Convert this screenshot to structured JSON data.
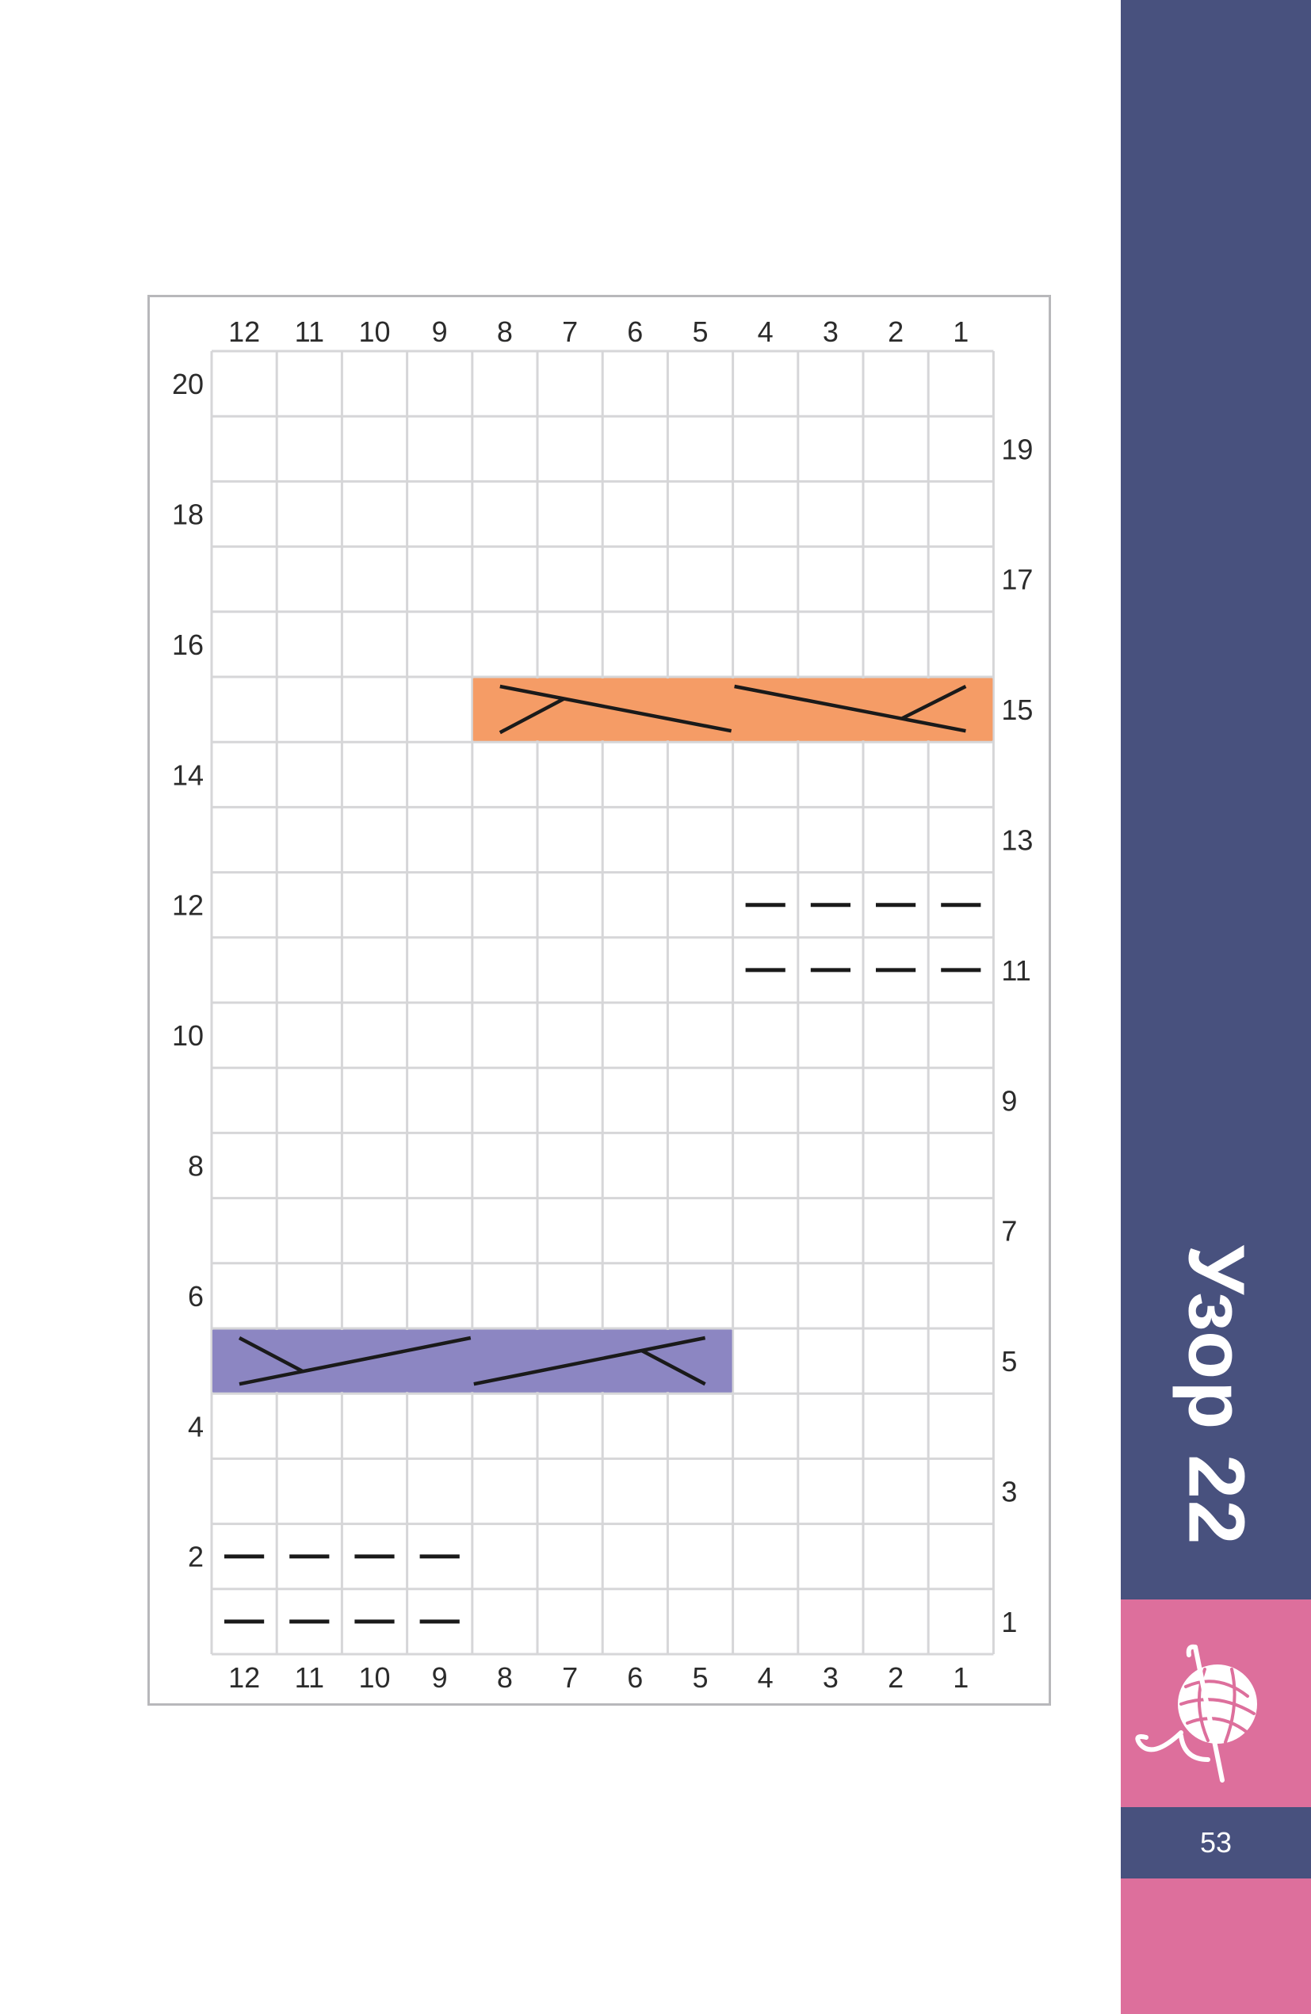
{
  "pattern_title": "Узор 22",
  "page_number": "53",
  "icon": "yarn-ball-crochet-hook-icon",
  "colors": {
    "sidebar": "#48517e",
    "pink": "#dd6f9c",
    "cable_right_highlight": "#f59c66",
    "cable_left_highlight": "#8c86c2",
    "grid_line": "#d6d6d8",
    "symbol": "#1a1a1a"
  },
  "chart": {
    "stitches": 12,
    "rows": 20,
    "column_labels": [
      "12",
      "11",
      "10",
      "9",
      "8",
      "7",
      "6",
      "5",
      "4",
      "3",
      "2",
      "1"
    ],
    "left_row_labels": [
      "20",
      "18",
      "16",
      "14",
      "12",
      "10",
      "8",
      "6",
      "4",
      "2"
    ],
    "right_row_labels": [
      "19",
      "17",
      "15",
      "13",
      "11",
      "9",
      "7",
      "5",
      "3",
      "1"
    ],
    "purl_cells": [
      {
        "row": 1,
        "stitches": [
          9,
          10,
          11,
          12
        ]
      },
      {
        "row": 2,
        "stitches": [
          9,
          10,
          11,
          12
        ]
      },
      {
        "row": 11,
        "stitches": [
          1,
          2,
          3,
          4
        ]
      },
      {
        "row": 12,
        "stitches": [
          1,
          2,
          3,
          4
        ]
      }
    ],
    "cables": [
      {
        "row": 15,
        "from_stitch": 1,
        "to_stitch": 8,
        "color": "orange"
      },
      {
        "row": 5,
        "from_stitch": 5,
        "to_stitch": 12,
        "color": "purple"
      }
    ]
  }
}
